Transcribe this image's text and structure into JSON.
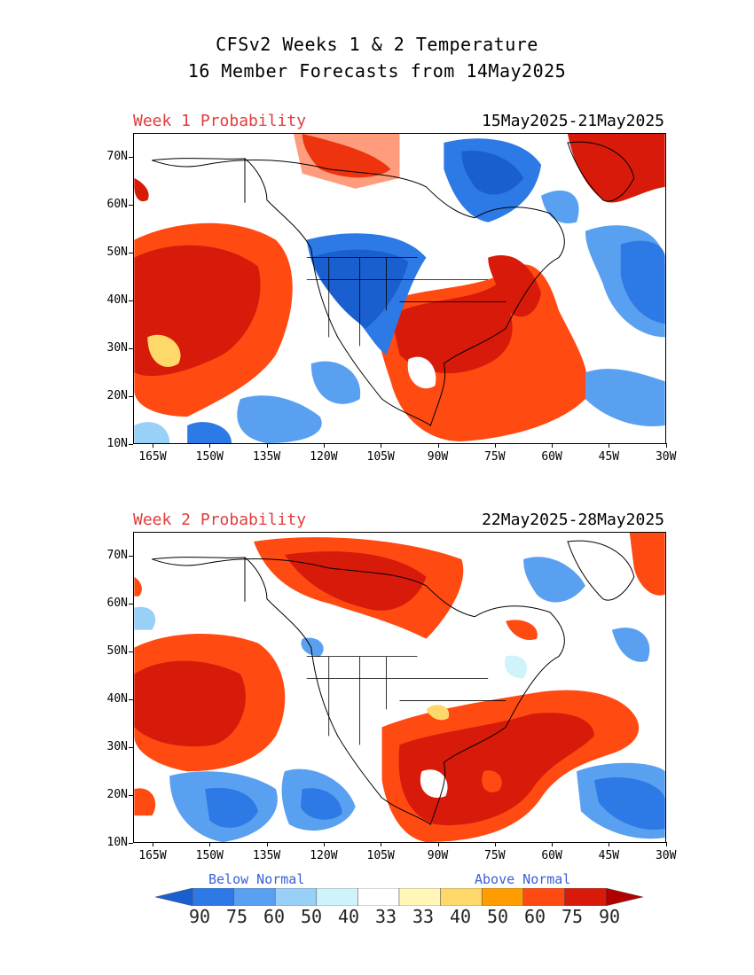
{
  "header": {
    "title": "CFSv2 Weeks 1 & 2 Temperature",
    "subtitle": "16 Member Forecasts from 14May2025"
  },
  "panels": [
    {
      "label": "Week 1 Probability",
      "date_range": "15May2025-21May2025"
    },
    {
      "label": "Week 2 Probability",
      "date_range": "22May2025-28May2025"
    }
  ],
  "latitude_ticks": [
    "70N",
    "60N",
    "50N",
    "40N",
    "30N",
    "20N",
    "10N"
  ],
  "longitude_ticks": [
    "165W",
    "150W",
    "135W",
    "120W",
    "105W",
    "90W",
    "75W",
    "60W",
    "45W",
    "30W"
  ],
  "legend": {
    "below_label": "Below Normal",
    "above_label": "Above Normal",
    "values": [
      "90",
      "75",
      "60",
      "50",
      "40",
      "33",
      "33",
      "40",
      "50",
      "60",
      "75",
      "90"
    ],
    "colors": [
      "#1a5fd0",
      "#2d79e6",
      "#5aa0f0",
      "#99d0f7",
      "#cff3fb",
      "#ffffff",
      "#fff6b8",
      "#ffd86a",
      "#ff9d00",
      "#ff4a12",
      "#d81a0a",
      "#b00000"
    ]
  }
}
